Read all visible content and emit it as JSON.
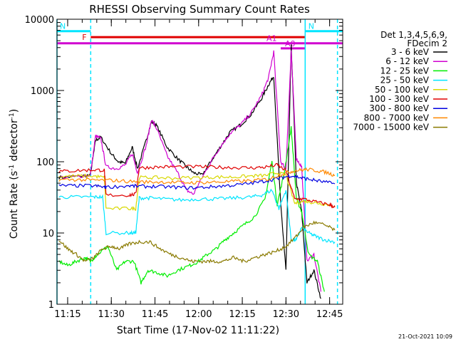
{
  "chart_data": {
    "type": "line",
    "title": "RHESSI Observing Summary Count Rates",
    "xlabel": "Start Time (17-Nov-02 11:11:22)",
    "ylabel": "Count Rate (s⁻¹ detector⁻¹)",
    "ylabel_parts": [
      "Count Rate (s",
      "-1",
      " detector",
      "-1",
      ")"
    ],
    "yscale": "log",
    "ylim": [
      1,
      10000
    ],
    "xlim": [
      11.189,
      12.825
    ],
    "x_unit": "hours UT",
    "x_ticks": [
      {
        "label": "11:15",
        "t": 11.25
      },
      {
        "label": "11:30",
        "t": 11.5
      },
      {
        "label": "11:45",
        "t": 11.75
      },
      {
        "label": "12:00",
        "t": 12.0
      },
      {
        "label": "12:15",
        "t": 12.25
      },
      {
        "label": "12:30",
        "t": 12.5
      },
      {
        "label": "12:45",
        "t": 12.75
      }
    ],
    "y_ticks": [
      {
        "label": "1",
        "v": 1
      },
      {
        "label": "10",
        "v": 10
      },
      {
        "label": "100",
        "v": 100
      },
      {
        "label": "1000",
        "v": 1000
      },
      {
        "label": "10000",
        "v": 10000
      }
    ],
    "legend_header": [
      "Det 1,3,4,5,6,9,",
      "FDecim 2"
    ],
    "legend_position": "right",
    "timestamp": "21-Oct-2021 10:09",
    "flags": [
      {
        "label": "N",
        "color": "#00e5ff",
        "t0": 11.189,
        "t1": 11.382,
        "v": 6800
      },
      {
        "label": "N",
        "color": "#00e5ff",
        "t0": 12.612,
        "t1": 12.825,
        "v": 6800
      },
      {
        "label": "F",
        "color": "#e00000",
        "t0": 11.382,
        "t1": 12.61,
        "v": 5600
      },
      {
        "label": "A1",
        "color": "#d000d0",
        "t0": 11.189,
        "t1": 12.825,
        "v": 4600
      },
      {
        "label": "A0",
        "color": "#d000d0",
        "t0": 12.47,
        "t1": 12.61,
        "v": 3900
      }
    ],
    "vlines": [
      {
        "t": 11.189,
        "color": "#00e5ff",
        "style": "solid"
      },
      {
        "t": 11.382,
        "color": "#00e5ff",
        "style": "dashed"
      },
      {
        "t": 12.61,
        "color": "#00e5ff",
        "style": "solid"
      },
      {
        "t": 12.795,
        "color": "#00e5ff",
        "style": "dashed"
      }
    ],
    "series": [
      {
        "name": "3 - 6 keV",
        "color": "#000000",
        "points": [
          [
            11.2,
            60
          ],
          [
            11.3,
            62
          ],
          [
            11.38,
            65
          ],
          [
            11.41,
            200
          ],
          [
            11.44,
            220
          ],
          [
            11.5,
            130
          ],
          [
            11.54,
            100
          ],
          [
            11.58,
            95
          ],
          [
            11.62,
            160
          ],
          [
            11.65,
            80
          ],
          [
            11.7,
            200
          ],
          [
            11.73,
            370
          ],
          [
            11.76,
            320
          ],
          [
            11.82,
            160
          ],
          [
            11.88,
            110
          ],
          [
            11.93,
            85
          ],
          [
            11.97,
            70
          ],
          [
            12.02,
            65
          ],
          [
            12.08,
            110
          ],
          [
            12.13,
            170
          ],
          [
            12.18,
            260
          ],
          [
            12.24,
            330
          ],
          [
            12.3,
            460
          ],
          [
            12.36,
            770
          ],
          [
            12.4,
            1200
          ],
          [
            12.43,
            1600
          ],
          [
            12.47,
            25
          ],
          [
            12.5,
            3
          ],
          [
            12.53,
            4500
          ],
          [
            12.56,
            50
          ],
          [
            12.59,
            20
          ],
          [
            12.62,
            2
          ],
          [
            12.66,
            3
          ],
          [
            12.7,
            1.2
          ]
        ]
      },
      {
        "name": "6 - 12 keV",
        "color": "#d000d0",
        "points": [
          [
            11.2,
            60
          ],
          [
            11.3,
            62
          ],
          [
            11.38,
            65
          ],
          [
            11.41,
            230
          ],
          [
            11.44,
            210
          ],
          [
            11.47,
            85
          ],
          [
            11.53,
            80
          ],
          [
            11.58,
            90
          ],
          [
            11.62,
            130
          ],
          [
            11.65,
            70
          ],
          [
            11.7,
            170
          ],
          [
            11.73,
            390
          ],
          [
            11.76,
            290
          ],
          [
            11.82,
            120
          ],
          [
            11.88,
            70
          ],
          [
            11.93,
            40
          ],
          [
            11.97,
            35
          ],
          [
            12.02,
            60
          ],
          [
            12.08,
            110
          ],
          [
            12.13,
            170
          ],
          [
            12.18,
            250
          ],
          [
            12.24,
            330
          ],
          [
            12.3,
            480
          ],
          [
            12.36,
            850
          ],
          [
            12.4,
            1500
          ],
          [
            12.43,
            3500
          ],
          [
            12.47,
            100
          ],
          [
            12.5,
            80
          ],
          [
            12.53,
            3500
          ],
          [
            12.56,
            110
          ],
          [
            12.59,
            85
          ],
          [
            12.62,
            4
          ],
          [
            12.66,
            5
          ],
          [
            12.7,
            1.5
          ]
        ]
      },
      {
        "name": "12 - 25 keV",
        "color": "#00ee00",
        "points": [
          [
            11.2,
            4
          ],
          [
            11.25,
            3.5
          ],
          [
            11.3,
            4
          ],
          [
            11.35,
            4.5
          ],
          [
            11.38,
            4
          ],
          [
            11.42,
            5
          ],
          [
            11.48,
            6.5
          ],
          [
            11.53,
            3
          ],
          [
            11.58,
            4
          ],
          [
            11.63,
            4
          ],
          [
            11.67,
            2
          ],
          [
            11.71,
            3
          ],
          [
            11.76,
            2.8
          ],
          [
            11.82,
            2.5
          ],
          [
            11.88,
            3
          ],
          [
            11.95,
            3.5
          ],
          [
            12.0,
            4
          ],
          [
            12.05,
            5
          ],
          [
            12.1,
            6
          ],
          [
            12.15,
            8
          ],
          [
            12.2,
            10
          ],
          [
            12.26,
            13
          ],
          [
            12.32,
            17
          ],
          [
            12.38,
            30
          ],
          [
            12.42,
            100
          ],
          [
            12.45,
            25
          ],
          [
            12.49,
            70
          ],
          [
            12.53,
            300
          ],
          [
            12.56,
            30
          ],
          [
            12.59,
            20
          ],
          [
            12.63,
            5
          ],
          [
            12.68,
            4
          ],
          [
            12.72,
            1.5
          ]
        ]
      },
      {
        "name": "25 - 50 keV",
        "color": "#00e5ff",
        "points": [
          [
            11.2,
            32
          ],
          [
            11.3,
            32
          ],
          [
            11.4,
            32
          ],
          [
            11.45,
            32
          ],
          [
            11.47,
            10
          ],
          [
            11.6,
            10
          ],
          [
            11.64,
            10
          ],
          [
            11.66,
            31
          ],
          [
            11.72,
            31
          ],
          [
            11.8,
            30
          ],
          [
            11.9,
            29
          ],
          [
            12.0,
            30
          ],
          [
            12.1,
            30
          ],
          [
            12.2,
            31
          ],
          [
            12.3,
            32
          ],
          [
            12.36,
            34
          ],
          [
            12.42,
            40
          ],
          [
            12.46,
            22
          ],
          [
            12.5,
            40
          ],
          [
            12.53,
            8
          ],
          [
            12.56,
            8
          ],
          [
            12.59,
            12
          ],
          [
            12.63,
            10
          ],
          [
            12.67,
            9
          ],
          [
            12.72,
            8
          ],
          [
            12.78,
            7.5
          ]
        ]
      },
      {
        "name": "50 - 100 keV",
        "color": "#d8d800",
        "points": [
          [
            11.2,
            62
          ],
          [
            11.3,
            63
          ],
          [
            11.4,
            63
          ],
          [
            11.46,
            60
          ],
          [
            11.47,
            22
          ],
          [
            11.6,
            22
          ],
          [
            11.64,
            22
          ],
          [
            11.66,
            60
          ],
          [
            11.75,
            60
          ],
          [
            11.85,
            59
          ],
          [
            12.0,
            60
          ],
          [
            12.1,
            61
          ],
          [
            12.2,
            61
          ],
          [
            12.3,
            63
          ],
          [
            12.38,
            64
          ],
          [
            12.45,
            70
          ],
          [
            12.5,
            65
          ],
          [
            12.55,
            26
          ],
          [
            12.6,
            28
          ],
          [
            12.65,
            27
          ],
          [
            12.7,
            26
          ],
          [
            12.78,
            24
          ]
        ]
      },
      {
        "name": "100 - 300 keV",
        "color": "#e00000",
        "points": [
          [
            11.2,
            73
          ],
          [
            11.3,
            75
          ],
          [
            11.4,
            77
          ],
          [
            11.46,
            76
          ],
          [
            11.47,
            34
          ],
          [
            11.6,
            34
          ],
          [
            11.64,
            35
          ],
          [
            11.66,
            82
          ],
          [
            11.75,
            84
          ],
          [
            11.85,
            85
          ],
          [
            12.0,
            85
          ],
          [
            12.1,
            84
          ],
          [
            12.2,
            83
          ],
          [
            12.3,
            82
          ],
          [
            12.38,
            84
          ],
          [
            12.45,
            90
          ],
          [
            12.5,
            75
          ],
          [
            12.55,
            30
          ],
          [
            12.6,
            30
          ],
          [
            12.68,
            27
          ],
          [
            12.75,
            25
          ],
          [
            12.78,
            23
          ]
        ]
      },
      {
        "name": "300 - 800 keV",
        "color": "#0000e0",
        "points": [
          [
            11.2,
            46
          ],
          [
            11.3,
            46
          ],
          [
            11.4,
            46
          ],
          [
            11.46,
            44
          ],
          [
            11.47,
            44
          ],
          [
            11.6,
            46
          ],
          [
            11.66,
            45
          ],
          [
            11.75,
            45
          ],
          [
            11.85,
            44
          ],
          [
            11.95,
            43
          ],
          [
            12.05,
            44
          ],
          [
            12.15,
            46
          ],
          [
            12.25,
            48
          ],
          [
            12.35,
            52
          ],
          [
            12.42,
            56
          ],
          [
            12.48,
            60
          ],
          [
            12.53,
            64
          ],
          [
            12.58,
            60
          ],
          [
            12.63,
            57
          ],
          [
            12.7,
            53
          ],
          [
            12.78,
            49
          ]
        ]
      },
      {
        "name": "800 - 7000 keV",
        "color": "#ff8800",
        "points": [
          [
            11.2,
            56
          ],
          [
            11.3,
            56
          ],
          [
            11.4,
            55
          ],
          [
            11.5,
            55
          ],
          [
            11.6,
            53
          ],
          [
            11.7,
            52
          ],
          [
            11.8,
            52
          ],
          [
            11.9,
            51
          ],
          [
            12.0,
            51
          ],
          [
            12.1,
            52
          ],
          [
            12.2,
            53
          ],
          [
            12.3,
            54
          ],
          [
            12.4,
            57
          ],
          [
            12.46,
            65
          ],
          [
            12.52,
            72
          ],
          [
            12.57,
            76
          ],
          [
            12.62,
            78
          ],
          [
            12.68,
            75
          ],
          [
            12.74,
            70
          ],
          [
            12.78,
            64
          ]
        ]
      },
      {
        "name": "7000 - 15000 keV",
        "color": "#8a7a00",
        "points": [
          [
            11.2,
            8
          ],
          [
            11.25,
            6
          ],
          [
            11.3,
            5
          ],
          [
            11.35,
            4
          ],
          [
            11.4,
            4.5
          ],
          [
            11.45,
            6
          ],
          [
            11.5,
            6.5
          ],
          [
            11.55,
            6
          ],
          [
            11.6,
            7
          ],
          [
            11.66,
            7.5
          ],
          [
            11.72,
            7.5
          ],
          [
            11.78,
            6
          ],
          [
            11.84,
            5
          ],
          [
            11.9,
            4.5
          ],
          [
            11.96,
            4
          ],
          [
            12.02,
            4
          ],
          [
            12.08,
            4
          ],
          [
            12.14,
            4
          ],
          [
            12.2,
            4.5
          ],
          [
            12.26,
            4
          ],
          [
            12.32,
            4.5
          ],
          [
            12.38,
            5
          ],
          [
            12.44,
            5.5
          ],
          [
            12.5,
            6.5
          ],
          [
            12.56,
            9
          ],
          [
            12.6,
            12
          ],
          [
            12.66,
            14
          ],
          [
            12.72,
            13
          ],
          [
            12.78,
            11
          ]
        ]
      }
    ]
  }
}
